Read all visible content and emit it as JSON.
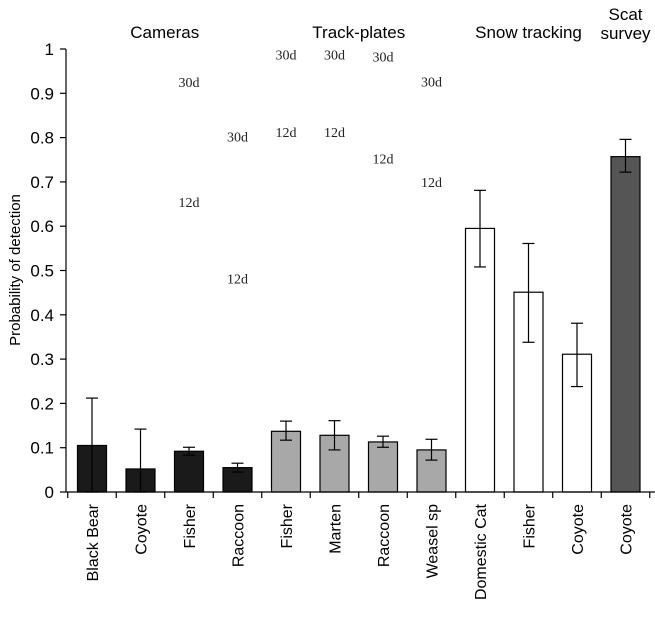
{
  "chart_data": {
    "type": "bar",
    "ylabel": "Probability of detection",
    "ylim": [
      0,
      1
    ],
    "yticks": [
      "0",
      "0.1",
      "0.2",
      "0.3",
      "0.4",
      "0.5",
      "0.6",
      "0.7",
      "0.8",
      "0.9",
      "1"
    ],
    "groups": [
      {
        "label": "Cameras",
        "color": "#1a1a1a",
        "bars": [
          {
            "category": "Black Bear",
            "value": 0.105,
            "lower": 0.0,
            "upper": 0.212
          },
          {
            "category": "Coyote",
            "value": 0.052,
            "lower": 0.0,
            "upper": 0.142
          },
          {
            "category": "Fisher",
            "value": 0.092,
            "lower": 0.083,
            "upper": 0.101
          },
          {
            "category": "Raccoon",
            "value": 0.055,
            "lower": 0.045,
            "upper": 0.065
          }
        ]
      },
      {
        "label": "Track-plates",
        "color": "#a8a8a8",
        "bars": [
          {
            "category": "Fisher",
            "value": 0.137,
            "lower": 0.117,
            "upper": 0.16
          },
          {
            "category": "Marten",
            "value": 0.128,
            "lower": 0.095,
            "upper": 0.161
          },
          {
            "category": "Raccoon",
            "value": 0.113,
            "lower": 0.101,
            "upper": 0.126
          },
          {
            "category": "Weasel sp",
            "value": 0.095,
            "lower": 0.072,
            "upper": 0.119
          }
        ]
      },
      {
        "label": "Snow tracking",
        "color": "#ffffff",
        "bars": [
          {
            "category": "Domestic Cat",
            "value": 0.595,
            "lower": 0.508,
            "upper": 0.681
          },
          {
            "category": "Fisher",
            "value": 0.451,
            "lower": 0.338,
            "upper": 0.561
          },
          {
            "category": "Coyote",
            "value": 0.311,
            "lower": 0.238,
            "upper": 0.381
          }
        ]
      },
      {
        "label": "Scat\nsurvey",
        "color": "#555555",
        "bars": [
          {
            "category": "Coyote",
            "value": 0.757,
            "lower": 0.722,
            "upper": 0.796
          }
        ]
      }
    ],
    "annotations": [
      {
        "text": "30d",
        "bar_index": 2,
        "y": 0.925
      },
      {
        "text": "12d",
        "bar_index": 2,
        "y": 0.655
      },
      {
        "text": "30d",
        "bar_index": 3,
        "y": 0.802
      },
      {
        "text": "12d",
        "bar_index": 3,
        "y": 0.482
      },
      {
        "text": "30d",
        "bar_index": 4,
        "y": 0.988
      },
      {
        "text": "12d",
        "bar_index": 4,
        "y": 0.813
      },
      {
        "text": "30d",
        "bar_index": 5,
        "y": 0.988
      },
      {
        "text": "12d",
        "bar_index": 5,
        "y": 0.813
      },
      {
        "text": "30d",
        "bar_index": 6,
        "y": 0.983
      },
      {
        "text": "12d",
        "bar_index": 6,
        "y": 0.753
      },
      {
        "text": "30d",
        "bar_index": 7,
        "y": 0.927
      },
      {
        "text": "12d",
        "bar_index": 7,
        "y": 0.7
      }
    ]
  }
}
